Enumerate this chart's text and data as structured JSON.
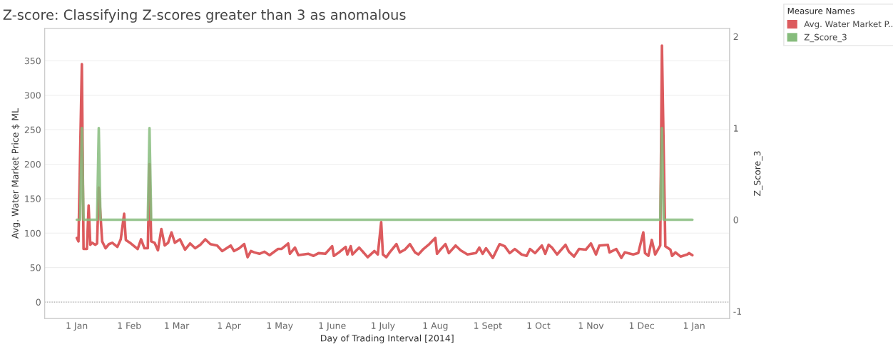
{
  "chart_data": {
    "type": "line",
    "title": "Z-score: Classifying Z-scores greater than 3 as anomalous",
    "xlabel": "Day of Trading Interval [2014]",
    "ylabel": "Avg. Water Market Price $ ML",
    "y2label": "Z_Score_3",
    "legend_title": "Measure Names",
    "legend": "top right",
    "grid": "y",
    "marker": "none",
    "line_style": "solid",
    "xlim": [
      "2013-12-13",
      "2015-01-22"
    ],
    "xticks": [
      {
        "value": "2014-01-01",
        "label": "1 Jan"
      },
      {
        "value": "2014-02-01",
        "label": "1 Feb"
      },
      {
        "value": "2014-03-01",
        "label": "1 Mar"
      },
      {
        "value": "2014-04-01",
        "label": "1 Apr"
      },
      {
        "value": "2014-05-01",
        "label": "1 May"
      },
      {
        "value": "2014-06-01",
        "label": "1 June"
      },
      {
        "value": "2014-07-01",
        "label": "1 July"
      },
      {
        "value": "2014-08-01",
        "label": "1 Aug"
      },
      {
        "value": "2014-09-01",
        "label": "1 Sept"
      },
      {
        "value": "2014-10-01",
        "label": "1 Oct"
      },
      {
        "value": "2014-11-01",
        "label": "1 Nov"
      },
      {
        "value": "2014-12-01",
        "label": "1 Dec"
      },
      {
        "value": "2015-01-01",
        "label": "1 Jan"
      }
    ],
    "ylim": [
      -24,
      397
    ],
    "yticks": [
      0,
      50,
      100,
      150,
      200,
      250,
      300,
      350
    ],
    "y2lim": [
      -1.08,
      2.09
    ],
    "y2ticks": [
      -1,
      0,
      1,
      2
    ],
    "ref_lines": [
      {
        "axis": "y",
        "value": 0,
        "color": "#aaaaaa",
        "line_style": "dotted"
      }
    ],
    "series": [
      {
        "name": "Avg. Water Market P..",
        "color": "#dc5b5e",
        "x": [
          "2014-01-01",
          "2014-01-02",
          "2014-01-04",
          "2014-01-05",
          "2014-01-07",
          "2014-01-08",
          "2014-01-09",
          "2014-01-10",
          "2014-01-12",
          "2014-01-13",
          "2014-01-14",
          "2014-01-16",
          "2014-01-18",
          "2014-01-20",
          "2014-01-22",
          "2014-01-25",
          "2014-01-27",
          "2014-01-29",
          "2014-01-30",
          "2014-02-02",
          "2014-02-06",
          "2014-02-08",
          "2014-02-10",
          "2014-02-12",
          "2014-02-13",
          "2014-02-14",
          "2014-02-16",
          "2014-02-18",
          "2014-02-20",
          "2014-02-22",
          "2014-02-24",
          "2014-02-26",
          "2014-02-28",
          "2014-03-03",
          "2014-03-06",
          "2014-03-09",
          "2014-03-12",
          "2014-03-15",
          "2014-03-18",
          "2014-03-21",
          "2014-03-25",
          "2014-03-28",
          "2014-04-02",
          "2014-04-04",
          "2014-04-07",
          "2014-04-10",
          "2014-04-12",
          "2014-04-14",
          "2014-04-16",
          "2014-04-19",
          "2014-04-22",
          "2014-04-25",
          "2014-04-30",
          "2014-05-02",
          "2014-05-06",
          "2014-05-07",
          "2014-05-10",
          "2014-05-12",
          "2014-05-18",
          "2014-05-21",
          "2014-05-24",
          "2014-05-28",
          "2014-06-01",
          "2014-06-02",
          "2014-06-05",
          "2014-06-09",
          "2014-06-10",
          "2014-06-12",
          "2014-06-13",
          "2014-06-17",
          "2014-06-22",
          "2014-06-26",
          "2014-06-28",
          "2014-06-30",
          "2014-07-01",
          "2014-07-03",
          "2014-07-05",
          "2014-07-09",
          "2014-07-11",
          "2014-07-14",
          "2014-07-17",
          "2014-07-20",
          "2014-07-22",
          "2014-07-25",
          "2014-07-28",
          "2014-08-01",
          "2014-08-02",
          "2014-08-04",
          "2014-08-07",
          "2014-08-09",
          "2014-08-13",
          "2014-08-16",
          "2014-08-20",
          "2014-08-25",
          "2014-08-27",
          "2014-08-29",
          "2014-08-31",
          "2014-09-04",
          "2014-09-08",
          "2014-09-11",
          "2014-09-14",
          "2014-09-17",
          "2014-09-21",
          "2014-09-24",
          "2014-09-26",
          "2014-09-29",
          "2014-10-03",
          "2014-10-05",
          "2014-10-07",
          "2014-10-09",
          "2014-10-12",
          "2014-10-17",
          "2014-10-19",
          "2014-10-22",
          "2014-10-25",
          "2014-10-29",
          "2014-11-01",
          "2014-11-04",
          "2014-11-06",
          "2014-11-11",
          "2014-11-12",
          "2014-11-16",
          "2014-11-19",
          "2014-11-21",
          "2014-11-26",
          "2014-11-29",
          "2014-12-02",
          "2014-12-03",
          "2014-12-05",
          "2014-12-07",
          "2014-12-09",
          "2014-12-12",
          "2014-12-13",
          "2014-12-15",
          "2014-12-18",
          "2014-12-19",
          "2014-12-21",
          "2014-12-24",
          "2014-12-28",
          "2014-12-29",
          "2014-12-31"
        ],
        "values": [
          93,
          88,
          345,
          77,
          77,
          140,
          83,
          86,
          83,
          85,
          166,
          88,
          78,
          84,
          86,
          80,
          91,
          128,
          90,
          85,
          77,
          91,
          78,
          78,
          200,
          88,
          86,
          75,
          106,
          82,
          86,
          101,
          86,
          91,
          76,
          85,
          78,
          83,
          91,
          84,
          82,
          74,
          82,
          74,
          78,
          84,
          65,
          74,
          72,
          70,
          73,
          68,
          77,
          77,
          85,
          70,
          79,
          68,
          70,
          67,
          71,
          70,
          81,
          67,
          72,
          80,
          69,
          81,
          69,
          79,
          65,
          74,
          69,
          116,
          69,
          65,
          72,
          84,
          72,
          76,
          84,
          72,
          69,
          77,
          83,
          93,
          70,
          76,
          84,
          71,
          82,
          75,
          69,
          71,
          79,
          70,
          78,
          64,
          84,
          81,
          71,
          77,
          69,
          67,
          77,
          71,
          82,
          70,
          83,
          79,
          69,
          83,
          73,
          66,
          77,
          76,
          85,
          69,
          82,
          83,
          72,
          77,
          64,
          72,
          69,
          71,
          101,
          71,
          67,
          90,
          69,
          82,
          372,
          81,
          76,
          67,
          72,
          66,
          69,
          71,
          68
        ]
      },
      {
        "name": "Z_Score_3",
        "color": "#86bc7c",
        "axis": "y2",
        "x": [
          "2014-01-01",
          "2014-01-03",
          "2014-01-04",
          "2014-01-05",
          "2014-01-13",
          "2014-01-14",
          "2014-01-15",
          "2014-02-12",
          "2014-02-13",
          "2014-02-14",
          "2014-12-12",
          "2014-12-13",
          "2014-12-14",
          "2014-12-31"
        ],
        "values": [
          0,
          0,
          1,
          0,
          0,
          1,
          0,
          0,
          1,
          0,
          0,
          1,
          0,
          0
        ]
      }
    ]
  }
}
